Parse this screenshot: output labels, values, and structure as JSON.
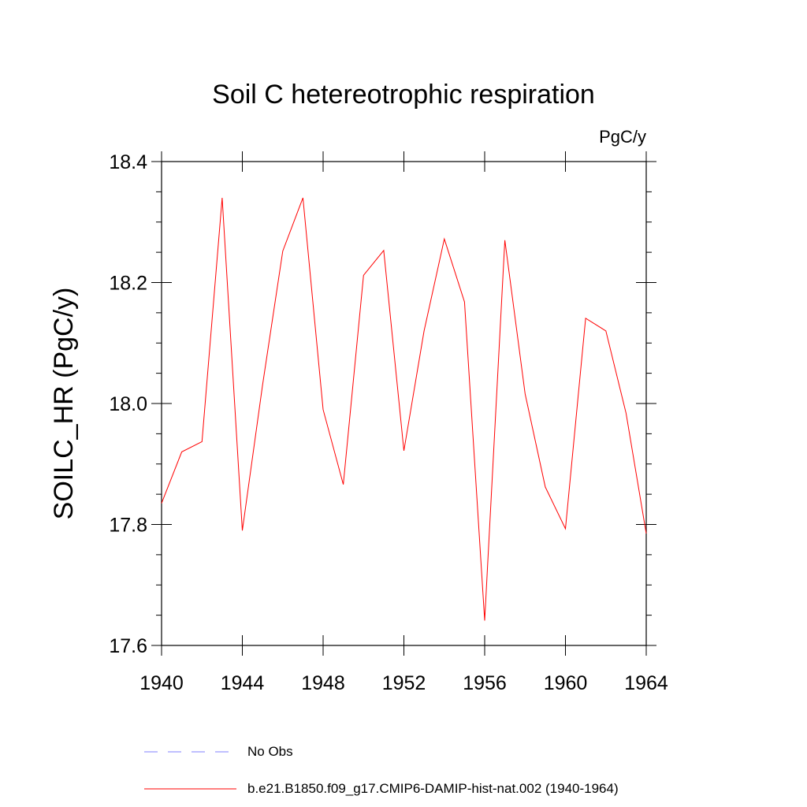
{
  "chart_data": {
    "type": "line",
    "title": "Soil C hetereotrophic respiration",
    "units_label": "PgC/y",
    "ylabel": "SOILC_HR  (PgC/y)",
    "xlabel": "",
    "xlim": [
      1940,
      1964
    ],
    "ylim": [
      17.6,
      18.4
    ],
    "x_ticks": [
      1940,
      1944,
      1948,
      1952,
      1956,
      1960,
      1964
    ],
    "x_tick_labels": [
      "1940",
      "1944",
      "1948",
      "1952",
      "1956",
      "1960",
      "1964"
    ],
    "y_ticks": [
      17.6,
      17.8,
      18.0,
      18.2,
      18.4
    ],
    "y_tick_labels": [
      "17.6",
      "17.8",
      "18.0",
      "18.2",
      "18.4"
    ],
    "y_minor_step": 0.05,
    "grid": false,
    "legend_placement": "bottom",
    "series": [
      {
        "name": "b.e21.B1850.f09_g17.CMIP6-DAMIP-hist-nat.002 (1940-1964)",
        "color": "#ff0000",
        "style": "solid",
        "x": [
          1940,
          1941,
          1942,
          1943,
          1944,
          1945,
          1946,
          1947,
          1948,
          1949,
          1950,
          1951,
          1952,
          1953,
          1954,
          1955,
          1956,
          1957,
          1958,
          1959,
          1960,
          1961,
          1962,
          1963,
          1964
        ],
        "y": [
          17.835,
          17.92,
          17.937,
          18.34,
          17.79,
          18.03,
          18.252,
          18.34,
          17.99,
          17.866,
          18.212,
          18.253,
          17.922,
          18.12,
          18.272,
          18.168,
          17.641,
          18.27,
          18.016,
          17.862,
          17.793,
          18.141,
          18.12,
          17.984,
          17.785
        ]
      }
    ],
    "legend": [
      {
        "label": "No Obs",
        "color": "#8080ff",
        "style": "dashed"
      },
      {
        "label": "b.e21.B1850.f09_g17.CMIP6-DAMIP-hist-nat.002 (1940-1964)",
        "color": "#ff0000",
        "style": "solid"
      }
    ]
  }
}
